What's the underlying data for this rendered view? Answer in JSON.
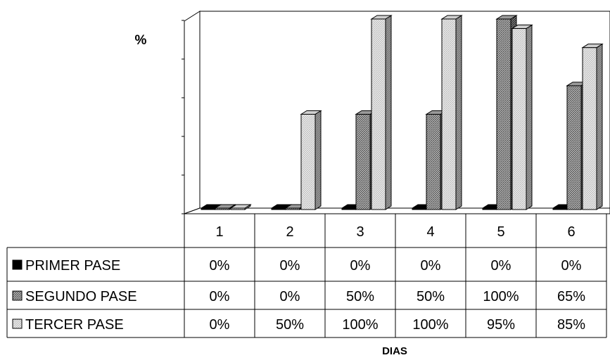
{
  "chart_data": {
    "type": "bar",
    "ylabel": "%",
    "xlabel": "DIAS",
    "categories": [
      "1",
      "2",
      "3",
      "4",
      "5",
      "6"
    ],
    "ylim": [
      0,
      100
    ],
    "y_gridlines": false,
    "data_table": true,
    "series": [
      {
        "name": "PRIMER PASE",
        "values": [
          0,
          0,
          0,
          0,
          0,
          0
        ],
        "labels": [
          "0%",
          "0%",
          "0%",
          "0%",
          "0%",
          "0%"
        ],
        "pattern": "solid-black"
      },
      {
        "name": "SEGUNDO PASE",
        "values": [
          0,
          0,
          50,
          50,
          100,
          65
        ],
        "labels": [
          "0%",
          "0%",
          "50%",
          "50%",
          "100%",
          "65%"
        ],
        "pattern": "dark-hatch"
      },
      {
        "name": "TERCER PASE",
        "values": [
          0,
          50,
          100,
          100,
          95,
          85
        ],
        "labels": [
          "0%",
          "50%",
          "100%",
          "100%",
          "95%",
          "85%"
        ],
        "pattern": "light-hatch"
      }
    ]
  }
}
